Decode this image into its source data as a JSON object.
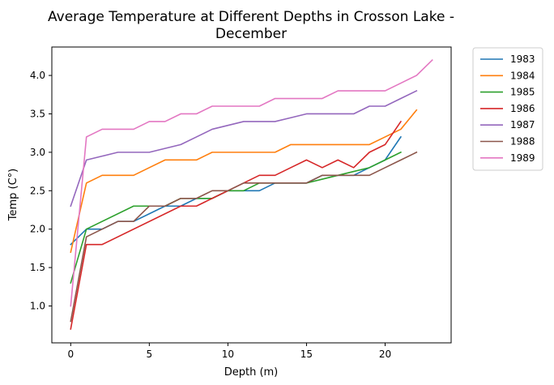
{
  "chart_data": {
    "type": "line",
    "title_line1": "Average Temperature at Different Depths in Crosson Lake -",
    "title_line2": "December",
    "xlabel": "Depth (m)",
    "ylabel": "Temp (C°)",
    "xlim": [
      -1.2,
      24.2
    ],
    "ylim": [
      0.52,
      4.37
    ],
    "xticks": [
      0,
      5,
      10,
      15,
      20
    ],
    "yticks": [
      1.0,
      1.5,
      2.0,
      2.5,
      3.0,
      3.5,
      4.0
    ],
    "xtick_labels": [
      "0",
      "5",
      "10",
      "15",
      "20"
    ],
    "ytick_labels": [
      "1.0",
      "1.5",
      "2.0",
      "2.5",
      "3.0",
      "3.5",
      "4.0"
    ],
    "grid": false,
    "legend_position": "outside-right-top",
    "series": [
      {
        "name": "1983",
        "color": "#1f77b4",
        "x": [
          0,
          1,
          2,
          3,
          4,
          5,
          6,
          7,
          8,
          9,
          10,
          11,
          12,
          13,
          14,
          15,
          16,
          17,
          18,
          19,
          20,
          21
        ],
        "y": [
          1.8,
          2.0,
          2.0,
          2.1,
          2.1,
          2.2,
          2.3,
          2.3,
          2.4,
          2.4,
          2.5,
          2.5,
          2.5,
          2.6,
          2.6,
          2.6,
          2.7,
          2.7,
          2.7,
          2.8,
          2.9,
          3.2
        ]
      },
      {
        "name": "1984",
        "color": "#ff7f0e",
        "x": [
          0,
          1,
          2,
          3,
          4,
          5,
          6,
          7,
          8,
          9,
          10,
          11,
          12,
          13,
          14,
          15,
          16,
          17,
          18,
          19,
          20,
          21,
          22
        ],
        "y": [
          1.7,
          2.6,
          2.7,
          2.7,
          2.7,
          2.8,
          2.9,
          2.9,
          2.9,
          3.0,
          3.0,
          3.0,
          3.0,
          3.0,
          3.1,
          3.1,
          3.1,
          3.1,
          3.1,
          3.1,
          3.2,
          3.3,
          3.55
        ]
      },
      {
        "name": "1985",
        "color": "#2ca02c",
        "x": [
          0,
          1,
          4,
          5,
          6,
          7,
          8,
          9,
          10,
          11,
          12,
          13,
          14,
          15,
          16,
          17,
          18,
          19,
          20,
          21
        ],
        "y": [
          1.3,
          2.0,
          2.3,
          2.3,
          2.3,
          2.4,
          2.4,
          2.4,
          2.5,
          2.5,
          2.6,
          2.6,
          2.6,
          2.6,
          2.65,
          2.7,
          2.75,
          2.8,
          2.9,
          3.0
        ]
      },
      {
        "name": "1986",
        "color": "#d62728",
        "x": [
          0,
          1,
          2,
          7,
          8,
          9,
          10,
          11,
          12,
          13,
          14,
          15,
          16,
          17,
          18,
          19,
          20,
          21
        ],
        "y": [
          0.7,
          1.8,
          1.8,
          2.3,
          2.3,
          2.4,
          2.5,
          2.6,
          2.7,
          2.7,
          2.8,
          2.9,
          2.8,
          2.9,
          2.8,
          3.0,
          3.1,
          3.4
        ]
      },
      {
        "name": "1987",
        "color": "#9467bd",
        "x": [
          0,
          1,
          2,
          3,
          4,
          5,
          6,
          7,
          8,
          9,
          10,
          11,
          12,
          13,
          14,
          15,
          16,
          17,
          18,
          19,
          20,
          21,
          22
        ],
        "y": [
          2.3,
          2.9,
          2.95,
          3.0,
          3.0,
          3.0,
          3.05,
          3.1,
          3.2,
          3.3,
          3.35,
          3.4,
          3.4,
          3.4,
          3.45,
          3.5,
          3.5,
          3.5,
          3.5,
          3.6,
          3.6,
          3.7,
          3.8
        ]
      },
      {
        "name": "1988",
        "color": "#8c564b",
        "x": [
          0,
          1,
          2,
          3,
          4,
          5,
          6,
          7,
          8,
          9,
          10,
          11,
          12,
          13,
          14,
          15,
          16,
          17,
          18,
          19,
          20,
          21,
          22
        ],
        "y": [
          0.8,
          1.9,
          2.0,
          2.1,
          2.1,
          2.3,
          2.3,
          2.4,
          2.4,
          2.5,
          2.5,
          2.6,
          2.6,
          2.6,
          2.6,
          2.6,
          2.7,
          2.7,
          2.7,
          2.7,
          2.8,
          2.9,
          3.0
        ]
      },
      {
        "name": "1989",
        "color": "#e377c2",
        "x": [
          0,
          1,
          2,
          3,
          4,
          5,
          6,
          7,
          8,
          9,
          10,
          11,
          12,
          13,
          14,
          15,
          16,
          17,
          18,
          19,
          20,
          21,
          22,
          23
        ],
        "y": [
          1.0,
          3.2,
          3.3,
          3.3,
          3.3,
          3.4,
          3.4,
          3.5,
          3.5,
          3.6,
          3.6,
          3.6,
          3.6,
          3.7,
          3.7,
          3.7,
          3.7,
          3.8,
          3.8,
          3.8,
          3.8,
          3.9,
          4.0,
          4.2
        ]
      }
    ]
  }
}
